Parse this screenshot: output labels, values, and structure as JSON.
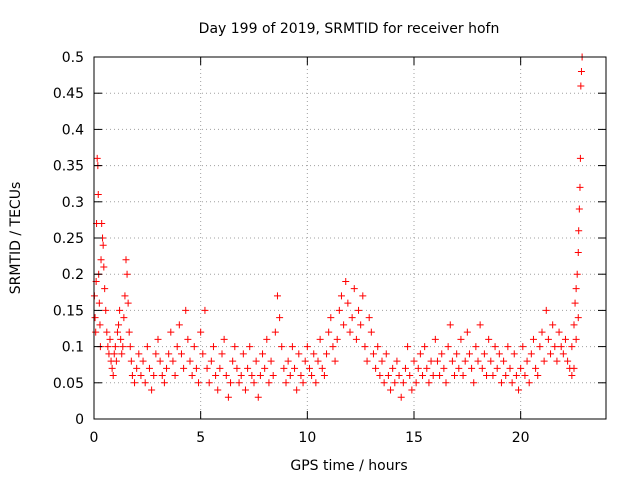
{
  "chart_data": {
    "type": "scatter",
    "title": "Day 199 of 2019, SRMTID for receiver hofn",
    "xlabel": "GPS time / hours",
    "ylabel": "SRMTID / TECUs",
    "xlim": [
      0,
      24
    ],
    "ylim": [
      0,
      0.5
    ],
    "x_ticks": [
      0,
      5,
      10,
      15,
      20
    ],
    "y_ticks": [
      0,
      0.05,
      0.1,
      0.15,
      0.2,
      0.25,
      0.3,
      0.35,
      0.4,
      0.45,
      0.5
    ],
    "x_tick_labels": [
      "0",
      "5",
      "10",
      "15",
      "20"
    ],
    "y_tick_labels": [
      "0",
      "0.05",
      "0.1",
      "0.15",
      "0.2",
      "0.25",
      "0.3",
      "0.35",
      "0.4",
      "0.45",
      "0.5"
    ],
    "grid": true,
    "marker": "+",
    "color": "#ff0000",
    "series": [
      {
        "name": "SRMTID",
        "points": [
          [
            0.02,
            0.17
          ],
          [
            0.05,
            0.14
          ],
          [
            0.08,
            0.12
          ],
          [
            0.1,
            0.19
          ],
          [
            0.12,
            0.27
          ],
          [
            0.15,
            0.36
          ],
          [
            0.18,
            0.35
          ],
          [
            0.2,
            0.31
          ],
          [
            0.22,
            0.2
          ],
          [
            0.25,
            0.16
          ],
          [
            0.28,
            0.13
          ],
          [
            0.3,
            0.1
          ],
          [
            0.33,
            0.22
          ],
          [
            0.36,
            0.27
          ],
          [
            0.4,
            0.25
          ],
          [
            0.43,
            0.24
          ],
          [
            0.46,
            0.21
          ],
          [
            0.5,
            0.18
          ],
          [
            0.55,
            0.15
          ],
          [
            0.6,
            0.12
          ],
          [
            0.65,
            0.1
          ],
          [
            0.7,
            0.09
          ],
          [
            0.75,
            0.11
          ],
          [
            0.8,
            0.08
          ],
          [
            0.85,
            0.07
          ],
          [
            0.9,
            0.06
          ],
          [
            0.95,
            0.09
          ],
          [
            1.0,
            0.1
          ],
          [
            1.05,
            0.08
          ],
          [
            1.1,
            0.12
          ],
          [
            1.15,
            0.13
          ],
          [
            1.2,
            0.15
          ],
          [
            1.25,
            0.11
          ],
          [
            1.3,
            0.09
          ],
          [
            1.35,
            0.1
          ],
          [
            1.4,
            0.14
          ],
          [
            1.45,
            0.17
          ],
          [
            1.5,
            0.22
          ],
          [
            1.55,
            0.2
          ],
          [
            1.6,
            0.16
          ],
          [
            1.65,
            0.12
          ],
          [
            1.7,
            0.1
          ],
          [
            1.75,
            0.08
          ],
          [
            1.8,
            0.06
          ],
          [
            1.9,
            0.05
          ],
          [
            2.0,
            0.07
          ],
          [
            2.1,
            0.09
          ],
          [
            2.2,
            0.06
          ],
          [
            2.3,
            0.08
          ],
          [
            2.4,
            0.05
          ],
          [
            2.5,
            0.1
          ],
          [
            2.6,
            0.07
          ],
          [
            2.7,
            0.04
          ],
          [
            2.8,
            0.06
          ],
          [
            2.9,
            0.09
          ],
          [
            3.0,
            0.11
          ],
          [
            3.1,
            0.08
          ],
          [
            3.2,
            0.06
          ],
          [
            3.3,
            0.05
          ],
          [
            3.4,
            0.07
          ],
          [
            3.5,
            0.09
          ],
          [
            3.6,
            0.12
          ],
          [
            3.7,
            0.08
          ],
          [
            3.8,
            0.06
          ],
          [
            3.9,
            0.1
          ],
          [
            4.0,
            0.13
          ],
          [
            4.1,
            0.09
          ],
          [
            4.2,
            0.07
          ],
          [
            4.3,
            0.15
          ],
          [
            4.4,
            0.11
          ],
          [
            4.5,
            0.08
          ],
          [
            4.6,
            0.06
          ],
          [
            4.7,
            0.1
          ],
          [
            4.8,
            0.07
          ],
          [
            4.9,
            0.05
          ],
          [
            5.0,
            0.12
          ],
          [
            5.1,
            0.09
          ],
          [
            5.2,
            0.15
          ],
          [
            5.3,
            0.07
          ],
          [
            5.4,
            0.05
          ],
          [
            5.5,
            0.08
          ],
          [
            5.6,
            0.1
          ],
          [
            5.7,
            0.06
          ],
          [
            5.8,
            0.04
          ],
          [
            5.9,
            0.07
          ],
          [
            6.0,
            0.09
          ],
          [
            6.1,
            0.11
          ],
          [
            6.2,
            0.06
          ],
          [
            6.3,
            0.03
          ],
          [
            6.4,
            0.05
          ],
          [
            6.5,
            0.08
          ],
          [
            6.6,
            0.1
          ],
          [
            6.7,
            0.07
          ],
          [
            6.8,
            0.05
          ],
          [
            6.9,
            0.06
          ],
          [
            7.0,
            0.09
          ],
          [
            7.1,
            0.04
          ],
          [
            7.2,
            0.07
          ],
          [
            7.3,
            0.1
          ],
          [
            7.4,
            0.06
          ],
          [
            7.5,
            0.05
          ],
          [
            7.6,
            0.08
          ],
          [
            7.7,
            0.03
          ],
          [
            7.8,
            0.06
          ],
          [
            7.9,
            0.09
          ],
          [
            8.0,
            0.07
          ],
          [
            8.1,
            0.11
          ],
          [
            8.2,
            0.05
          ],
          [
            8.3,
            0.08
          ],
          [
            8.4,
            0.06
          ],
          [
            8.5,
            0.12
          ],
          [
            8.6,
            0.17
          ],
          [
            8.7,
            0.14
          ],
          [
            8.8,
            0.1
          ],
          [
            8.9,
            0.07
          ],
          [
            9.0,
            0.05
          ],
          [
            9.1,
            0.08
          ],
          [
            9.2,
            0.06
          ],
          [
            9.3,
            0.1
          ],
          [
            9.4,
            0.07
          ],
          [
            9.5,
            0.04
          ],
          [
            9.6,
            0.09
          ],
          [
            9.7,
            0.06
          ],
          [
            9.8,
            0.05
          ],
          [
            9.9,
            0.08
          ],
          [
            10.0,
            0.1
          ],
          [
            10.1,
            0.07
          ],
          [
            10.2,
            0.06
          ],
          [
            10.3,
            0.09
          ],
          [
            10.4,
            0.05
          ],
          [
            10.5,
            0.08
          ],
          [
            10.6,
            0.11
          ],
          [
            10.7,
            0.07
          ],
          [
            10.8,
            0.06
          ],
          [
            10.9,
            0.09
          ],
          [
            11.0,
            0.12
          ],
          [
            11.1,
            0.14
          ],
          [
            11.2,
            0.1
          ],
          [
            11.3,
            0.08
          ],
          [
            11.4,
            0.11
          ],
          [
            11.5,
            0.15
          ],
          [
            11.6,
            0.17
          ],
          [
            11.7,
            0.13
          ],
          [
            11.8,
            0.19
          ],
          [
            11.9,
            0.16
          ],
          [
            12.0,
            0.12
          ],
          [
            12.1,
            0.14
          ],
          [
            12.2,
            0.18
          ],
          [
            12.3,
            0.11
          ],
          [
            12.4,
            0.15
          ],
          [
            12.5,
            0.13
          ],
          [
            12.6,
            0.17
          ],
          [
            12.7,
            0.1
          ],
          [
            12.8,
            0.08
          ],
          [
            12.9,
            0.14
          ],
          [
            13.0,
            0.12
          ],
          [
            13.1,
            0.09
          ],
          [
            13.2,
            0.07
          ],
          [
            13.3,
            0.1
          ],
          [
            13.4,
            0.06
          ],
          [
            13.5,
            0.08
          ],
          [
            13.6,
            0.05
          ],
          [
            13.7,
            0.09
          ],
          [
            13.8,
            0.06
          ],
          [
            13.9,
            0.04
          ],
          [
            14.0,
            0.07
          ],
          [
            14.1,
            0.05
          ],
          [
            14.2,
            0.08
          ],
          [
            14.3,
            0.06
          ],
          [
            14.4,
            0.03
          ],
          [
            14.5,
            0.05
          ],
          [
            14.6,
            0.07
          ],
          [
            14.7,
            0.1
          ],
          [
            14.8,
            0.06
          ],
          [
            14.9,
            0.04
          ],
          [
            15.0,
            0.08
          ],
          [
            15.1,
            0.05
          ],
          [
            15.2,
            0.07
          ],
          [
            15.3,
            0.09
          ],
          [
            15.4,
            0.06
          ],
          [
            15.5,
            0.1
          ],
          [
            15.6,
            0.07
          ],
          [
            15.7,
            0.05
          ],
          [
            15.8,
            0.08
          ],
          [
            15.9,
            0.06
          ],
          [
            16.0,
            0.11
          ],
          [
            16.1,
            0.08
          ],
          [
            16.2,
            0.06
          ],
          [
            16.3,
            0.09
          ],
          [
            16.4,
            0.07
          ],
          [
            16.5,
            0.05
          ],
          [
            16.6,
            0.1
          ],
          [
            16.7,
            0.13
          ],
          [
            16.8,
            0.08
          ],
          [
            16.9,
            0.06
          ],
          [
            17.0,
            0.09
          ],
          [
            17.1,
            0.07
          ],
          [
            17.2,
            0.11
          ],
          [
            17.3,
            0.06
          ],
          [
            17.4,
            0.08
          ],
          [
            17.5,
            0.12
          ],
          [
            17.6,
            0.09
          ],
          [
            17.7,
            0.07
          ],
          [
            17.8,
            0.05
          ],
          [
            17.9,
            0.1
          ],
          [
            18.0,
            0.08
          ],
          [
            18.1,
            0.13
          ],
          [
            18.2,
            0.07
          ],
          [
            18.3,
            0.09
          ],
          [
            18.4,
            0.06
          ],
          [
            18.5,
            0.11
          ],
          [
            18.6,
            0.08
          ],
          [
            18.7,
            0.06
          ],
          [
            18.8,
            0.1
          ],
          [
            18.9,
            0.07
          ],
          [
            19.0,
            0.09
          ],
          [
            19.1,
            0.05
          ],
          [
            19.2,
            0.08
          ],
          [
            19.3,
            0.06
          ],
          [
            19.4,
            0.1
          ],
          [
            19.5,
            0.07
          ],
          [
            19.6,
            0.05
          ],
          [
            19.7,
            0.09
          ],
          [
            19.8,
            0.06
          ],
          [
            19.9,
            0.04
          ],
          [
            20.0,
            0.07
          ],
          [
            20.1,
            0.1
          ],
          [
            20.2,
            0.06
          ],
          [
            20.3,
            0.08
          ],
          [
            20.4,
            0.05
          ],
          [
            20.5,
            0.09
          ],
          [
            20.6,
            0.11
          ],
          [
            20.7,
            0.07
          ],
          [
            20.8,
            0.06
          ],
          [
            20.9,
            0.1
          ],
          [
            21.0,
            0.12
          ],
          [
            21.1,
            0.08
          ],
          [
            21.2,
            0.15
          ],
          [
            21.3,
            0.11
          ],
          [
            21.4,
            0.09
          ],
          [
            21.5,
            0.13
          ],
          [
            21.6,
            0.1
          ],
          [
            21.7,
            0.08
          ],
          [
            21.8,
            0.12
          ],
          [
            21.9,
            0.1
          ],
          [
            22.0,
            0.09
          ],
          [
            22.1,
            0.11
          ],
          [
            22.2,
            0.08
          ],
          [
            22.3,
            0.07
          ],
          [
            22.4,
            0.1
          ],
          [
            22.5,
            0.13
          ],
          [
            22.55,
            0.16
          ],
          [
            22.6,
            0.18
          ],
          [
            22.65,
            0.2
          ],
          [
            22.7,
            0.23
          ],
          [
            22.72,
            0.26
          ],
          [
            22.75,
            0.29
          ],
          [
            22.78,
            0.32
          ],
          [
            22.8,
            0.36
          ],
          [
            22.82,
            0.46
          ],
          [
            22.85,
            0.48
          ],
          [
            22.88,
            0.5
          ],
          [
            22.7,
            0.14
          ],
          [
            22.6,
            0.11
          ],
          [
            22.5,
            0.07
          ],
          [
            22.4,
            0.06
          ]
        ]
      }
    ]
  }
}
